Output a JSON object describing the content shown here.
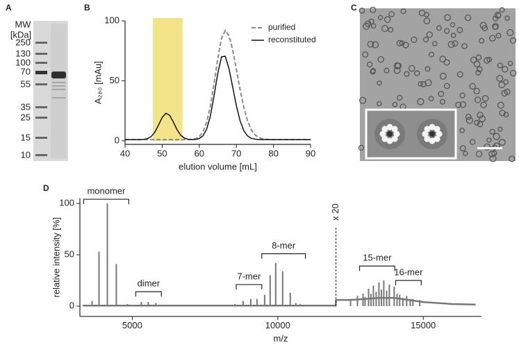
{
  "panel_labels": [
    "A",
    "B",
    "C",
    "D"
  ],
  "gel": {
    "title": "MW",
    "unit": "[kDa]",
    "markers": [
      250,
      130,
      100,
      70,
      55,
      35,
      25,
      15,
      10
    ]
  },
  "chart_data": [
    {
      "type": "line",
      "xlabel": "elution volume [mL]",
      "ylabel": "A₂₈₀ [mAu]",
      "x": [
        40,
        41,
        42,
        43,
        44,
        45,
        46,
        47,
        48,
        49,
        50,
        51,
        52,
        53,
        54,
        55,
        56,
        57,
        58,
        59,
        60,
        61,
        62,
        63,
        64,
        65,
        66,
        67,
        68,
        69,
        70,
        71,
        72,
        73,
        74,
        75,
        76,
        77,
        78,
        79,
        80,
        81,
        82,
        83,
        84,
        85,
        86,
        87,
        88,
        89,
        90
      ],
      "series": [
        {
          "name": "purified",
          "color": "#888888",
          "dash": true,
          "values": [
            1,
            1,
            1,
            1,
            1,
            1,
            1,
            1,
            1,
            1,
            1,
            1,
            1,
            1,
            1,
            1,
            1,
            1,
            1.2,
            1.8,
            3.4,
            7.4,
            15.3,
            28.9,
            47.8,
            68.7,
            85.5,
            92,
            87.7,
            75.9,
            59.6,
            42.7,
            27.9,
            16.7,
            9.3,
            5,
            2.8,
            1.7,
            1.3,
            1,
            1,
            1,
            1,
            1,
            1,
            1,
            1,
            1,
            1,
            1,
            1
          ]
        },
        {
          "name": "reconstituted",
          "color": "#111111",
          "dash": false,
          "values": [
            1,
            1,
            1,
            1,
            1,
            1.1,
            1.8,
            3.4,
            7.1,
            13,
            19.4,
            22.9,
            21.3,
            15.7,
            9.3,
            4.6,
            2.2,
            1.3,
            1,
            1.1,
            1.9,
            4.1,
            9.7,
            20.7,
            37.7,
            56.5,
            70,
            70.5,
            60.3,
            45,
            29.3,
            16.7,
            8.5,
            4.1,
            2.1,
            1.4,
            1,
            1,
            1,
            1,
            1,
            1,
            1,
            1,
            1,
            1,
            1,
            1,
            1,
            1,
            1
          ]
        }
      ],
      "xlim": [
        40,
        90
      ],
      "ylim": [
        -3,
        100
      ],
      "xticks": [
        40,
        50,
        60,
        70,
        80,
        90
      ],
      "yticks": [
        0,
        50,
        100
      ],
      "highlight": {
        "span": [
          47.5,
          55.5
        ],
        "color": "#f3e48a"
      },
      "legend": "upper right"
    },
    {
      "type": "stem",
      "xlabel": "m/z",
      "ylabel": "relative intensity [%]",
      "color": "#777777",
      "x": [
        3619,
        3857,
        4143,
        4452,
        4833,
        5310,
        5548,
        5810,
        8524,
        8810,
        9071,
        9286,
        9548,
        9738,
        9929,
        10167,
        10429,
        10619,
        10762,
        12500,
        12738,
        12929,
        13000,
        13119,
        13200,
        13286,
        13380,
        13476,
        13560,
        13643,
        13740,
        13833,
        14000,
        14100,
        14190,
        14300,
        14429,
        14550,
        14643,
        14881
      ],
      "values": [
        5,
        53,
        100,
        41,
        2,
        4,
        4,
        3,
        2,
        5,
        7,
        7,
        11,
        30,
        42,
        34,
        13,
        3,
        2,
        7,
        10,
        12,
        9,
        17,
        12,
        20,
        14,
        23,
        16,
        25,
        15,
        21,
        19,
        12,
        11,
        8,
        10,
        7,
        7,
        6
      ],
      "continuum": {
        "x": [
          3300,
          11990,
          12000,
          12500,
          13000,
          13500,
          14000,
          14500,
          15000,
          15500,
          16000,
          16800
        ],
        "values": [
          0.5,
          0.5,
          6,
          6,
          7,
          8,
          8,
          6,
          4,
          3,
          2,
          1.5
        ]
      },
      "scale_break": {
        "x": 12000,
        "label": "x 20"
      },
      "brackets": [
        {
          "text": "monomer",
          "span": [
            3330,
            4880
          ],
          "y": 104
        },
        {
          "text": "dimer",
          "span": [
            5120,
            6000
          ],
          "y": 14
        },
        {
          "text": "7-mer",
          "span": [
            8570,
            9450
          ],
          "y": 21
        },
        {
          "text": "8-mer",
          "span": [
            9450,
            10950
          ],
          "y": 51
        },
        {
          "text": "15-mer",
          "span": [
            12810,
            14020
          ],
          "y": 39
        },
        {
          "text": "16-mer",
          "span": [
            14050,
            14930
          ],
          "y": 25
        }
      ],
      "xlim": [
        3200,
        17000
      ],
      "ylim": [
        -10,
        105
      ],
      "xticks": [
        5000,
        10000,
        15000
      ],
      "yticks": [
        0,
        50,
        100
      ]
    }
  ]
}
